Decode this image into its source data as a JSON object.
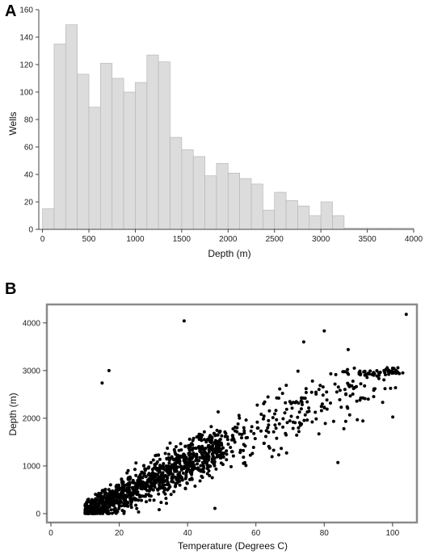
{
  "chart_data": [
    {
      "panel_label": "A",
      "type": "bar",
      "xlabel": "Depth (m)",
      "ylabel": "Wells",
      "xlim": [
        -40,
        4000
      ],
      "ylim": [
        0,
        160
      ],
      "xticks": [
        "0",
        "500",
        "1000",
        "1500",
        "2000",
        "2500",
        "3000",
        "3500",
        "4000"
      ],
      "yticks": [
        "0",
        "20",
        "40",
        "60",
        "80",
        "100",
        "120",
        "140",
        "160"
      ],
      "bin_width": 125,
      "bin_starts": [
        0,
        125,
        250,
        375,
        500,
        625,
        750,
        875,
        1000,
        1125,
        1250,
        1375,
        1500,
        1625,
        1750,
        1875,
        2000,
        2125,
        2250,
        2375,
        2500,
        2625,
        2750,
        2875,
        3000,
        3125,
        3250,
        3375,
        3500,
        3625,
        3750,
        3875
      ],
      "values": [
        15,
        135,
        149,
        113,
        89,
        121,
        110,
        100,
        107,
        127,
        122,
        67,
        58,
        53,
        39,
        48,
        41,
        37,
        33,
        14,
        27,
        21,
        17,
        10,
        20,
        10,
        1,
        1,
        1,
        1,
        1,
        1
      ]
    },
    {
      "panel_label": "B",
      "type": "scatter",
      "xlabel": "Temperature (Degrees C)",
      "ylabel": "Depth (m)",
      "xlim": [
        0,
        105
      ],
      "ylim": [
        0,
        4200
      ],
      "xticks": [
        "0",
        "20",
        "40",
        "60",
        "80",
        "100"
      ],
      "yticks": [
        "0",
        "1000",
        "2000",
        "3000",
        "4000"
      ],
      "note": "Dense cloud of ~1500 wells approximated by generated points; distinct outliers listed explicitly",
      "outliers": [
        [
          104,
          4180
        ],
        [
          39,
          4040
        ],
        [
          80,
          3830
        ],
        [
          74,
          3600
        ],
        [
          87,
          3440
        ],
        [
          17,
          3000
        ],
        [
          15,
          2740
        ],
        [
          84,
          1070
        ],
        [
          48,
          110
        ],
        [
          103,
          2950
        ],
        [
          100,
          3050
        ]
      ]
    }
  ]
}
